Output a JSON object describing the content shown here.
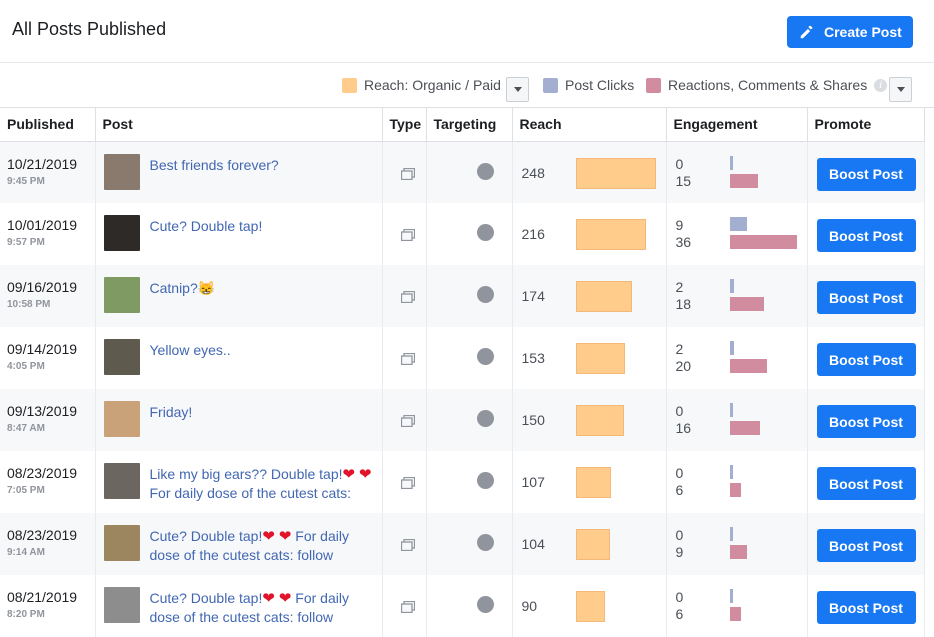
{
  "header": {
    "title": "All Posts Published",
    "create_label": "Create Post"
  },
  "legend": {
    "reach": "Reach: Organic / Paid",
    "clicks": "Post Clicks",
    "reactions": "Reactions, Comments & Shares",
    "colors": {
      "reach": "#ffcc8c",
      "clicks": "#a3aed0",
      "reactions": "#d28c9f",
      "accent": "#1877f2"
    }
  },
  "columns": {
    "published": "Published",
    "post": "Post",
    "type": "Type",
    "targeting": "Targeting",
    "reach": "Reach",
    "engagement": "Engagement",
    "promote": "Promote"
  },
  "boost_label": "Boost Post",
  "rows": [
    {
      "date": "10/21/2019",
      "time": "9:45 PM",
      "text": "Best friends forever?",
      "reach": "248",
      "clicks": "0",
      "reactions": "15",
      "thumb": "#8a7a6e"
    },
    {
      "date": "10/01/2019",
      "time": "9:57 PM",
      "text": "Cute? Double tap!",
      "reach": "216",
      "clicks": "9",
      "reactions": "36",
      "thumb": "#2d2a28"
    },
    {
      "date": "09/16/2019",
      "time": "10:58 PM",
      "text": "Catnip?😸",
      "reach": "174",
      "clicks": "2",
      "reactions": "18",
      "thumb": "#7f9a62"
    },
    {
      "date": "09/14/2019",
      "time": "4:05 PM",
      "text": "Yellow eyes..",
      "reach": "153",
      "clicks": "2",
      "reactions": "20",
      "thumb": "#5e5a4e"
    },
    {
      "date": "09/13/2019",
      "time": "8:47 AM",
      "text": "Friday!",
      "reach": "150",
      "clicks": "0",
      "reactions": "16",
      "thumb": "#c9a27a"
    },
    {
      "date": "08/23/2019",
      "time": "7:05 PM",
      "text": "Like my big ears?? Double tap!❤ ❤ For daily dose of the cutest cats:",
      "reach": "107",
      "clicks": "0",
      "reactions": "6",
      "thumb": "#6b6660"
    },
    {
      "date": "08/23/2019",
      "time": "9:14 AM",
      "text": "Cute? Double tap!❤ ❤ For daily dose of the cutest cats: follow",
      "reach": "104",
      "clicks": "0",
      "reactions": "9",
      "thumb": "#9c8660"
    },
    {
      "date": "08/21/2019",
      "time": "8:20 PM",
      "text": "Cute? Double tap!❤ ❤ For daily dose of the cutest cats: follow",
      "reach": "90",
      "clicks": "0",
      "reactions": "6",
      "thumb": "#8d8d8d"
    }
  ]
}
